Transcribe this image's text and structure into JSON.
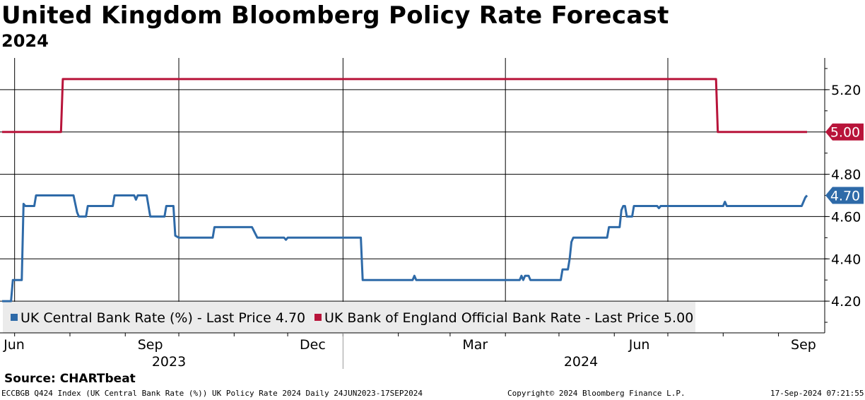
{
  "header": {
    "title": "United Kingdom Bloomberg Policy Rate Forecast",
    "subtitle": "2024"
  },
  "chart_data": {
    "type": "line",
    "title": "United Kingdom Bloomberg Policy Rate Forecast",
    "subtitle": "2024",
    "ylim": [
      4.05,
      5.35
    ],
    "y_ticks": [
      "4.20",
      "4.40",
      "4.60",
      "4.80",
      "5.00",
      "5.20"
    ],
    "x_tick_labels": [
      "Jun",
      "Sep",
      "Dec",
      "Mar",
      "Jun",
      "Sep"
    ],
    "x_year_labels": [
      "2023",
      "2024"
    ],
    "grid": true,
    "legend_position": "bottom-left",
    "series": [
      {
        "name": "UK Central Bank Rate (%) - Last Price 4.70",
        "color": "#2e6aa8",
        "last_value": "4.70",
        "points": [
          [
            "2023-06-24",
            4.2
          ],
          [
            "2023-06-29",
            4.2
          ],
          [
            "2023-06-30",
            4.3
          ],
          [
            "2023-07-05",
            4.3
          ],
          [
            "2023-07-06",
            4.66
          ],
          [
            "2023-07-07",
            4.65
          ],
          [
            "2023-07-12",
            4.65
          ],
          [
            "2023-07-13",
            4.7
          ],
          [
            "2023-08-03",
            4.7
          ],
          [
            "2023-08-05",
            4.62
          ],
          [
            "2023-08-06",
            4.6
          ],
          [
            "2023-08-10",
            4.6
          ],
          [
            "2023-08-11",
            4.65
          ],
          [
            "2023-08-25",
            4.65
          ],
          [
            "2023-08-26",
            4.7
          ],
          [
            "2023-09-06",
            4.7
          ],
          [
            "2023-09-07",
            4.68
          ],
          [
            "2023-09-08",
            4.7
          ],
          [
            "2023-09-13",
            4.7
          ],
          [
            "2023-09-15",
            4.6
          ],
          [
            "2023-09-23",
            4.6
          ],
          [
            "2023-09-24",
            4.65
          ],
          [
            "2023-09-28",
            4.65
          ],
          [
            "2023-09-29",
            4.51
          ],
          [
            "2023-10-01",
            4.5
          ],
          [
            "2023-10-20",
            4.5
          ],
          [
            "2023-10-21",
            4.55
          ],
          [
            "2023-11-11",
            4.55
          ],
          [
            "2023-11-14",
            4.5
          ],
          [
            "2023-11-29",
            4.5
          ],
          [
            "2023-11-30",
            4.49
          ],
          [
            "2023-12-01",
            4.5
          ],
          [
            "2024-01-11",
            4.5
          ],
          [
            "2024-01-12",
            4.3
          ],
          [
            "2024-02-09",
            4.3
          ],
          [
            "2024-02-10",
            4.32
          ],
          [
            "2024-02-11",
            4.3
          ],
          [
            "2024-04-09",
            4.3
          ],
          [
            "2024-04-10",
            4.32
          ],
          [
            "2024-04-11",
            4.3
          ],
          [
            "2024-04-12",
            4.32
          ],
          [
            "2024-04-14",
            4.32
          ],
          [
            "2024-04-15",
            4.3
          ],
          [
            "2024-05-02",
            4.3
          ],
          [
            "2024-05-03",
            4.35
          ],
          [
            "2024-05-06",
            4.35
          ],
          [
            "2024-05-07",
            4.4
          ],
          [
            "2024-05-08",
            4.48
          ],
          [
            "2024-05-09",
            4.5
          ],
          [
            "2024-05-28",
            4.5
          ],
          [
            "2024-05-29",
            4.55
          ],
          [
            "2024-06-04",
            4.55
          ],
          [
            "2024-06-05",
            4.63
          ],
          [
            "2024-06-06",
            4.65
          ],
          [
            "2024-06-07",
            4.65
          ],
          [
            "2024-06-08",
            4.6
          ],
          [
            "2024-06-11",
            4.6
          ],
          [
            "2024-06-12",
            4.65
          ],
          [
            "2024-06-25",
            4.65
          ],
          [
            "2024-06-26",
            4.64
          ],
          [
            "2024-06-27",
            4.65
          ],
          [
            "2024-08-01",
            4.65
          ],
          [
            "2024-08-02",
            4.67
          ],
          [
            "2024-08-03",
            4.65
          ],
          [
            "2024-09-14",
            4.65
          ],
          [
            "2024-09-16",
            4.69
          ],
          [
            "2024-09-17",
            4.7
          ]
        ]
      },
      {
        "name": "UK Bank of England Official Bank Rate - Last Price 5.00",
        "color": "#b8143a",
        "last_value": "5.00",
        "points": [
          [
            "2023-06-24",
            5.0
          ],
          [
            "2023-07-27",
            5.0
          ],
          [
            "2023-07-28",
            5.25
          ],
          [
            "2024-07-28",
            5.25
          ],
          [
            "2024-07-29",
            5.0
          ],
          [
            "2024-09-17",
            5.0
          ]
        ]
      }
    ]
  },
  "footer": {
    "source": "Source:  CHARTbeat",
    "ticker_info": "ECCBGB Q424 Index (UK Central Bank Rate (%)) UK Policy Rate 2024  Daily 24JUN2023-17SEP2024",
    "copyright": "Copyright© 2024 Bloomberg Finance L.P.",
    "timestamp": "17-Sep-2024 07:21:55"
  }
}
